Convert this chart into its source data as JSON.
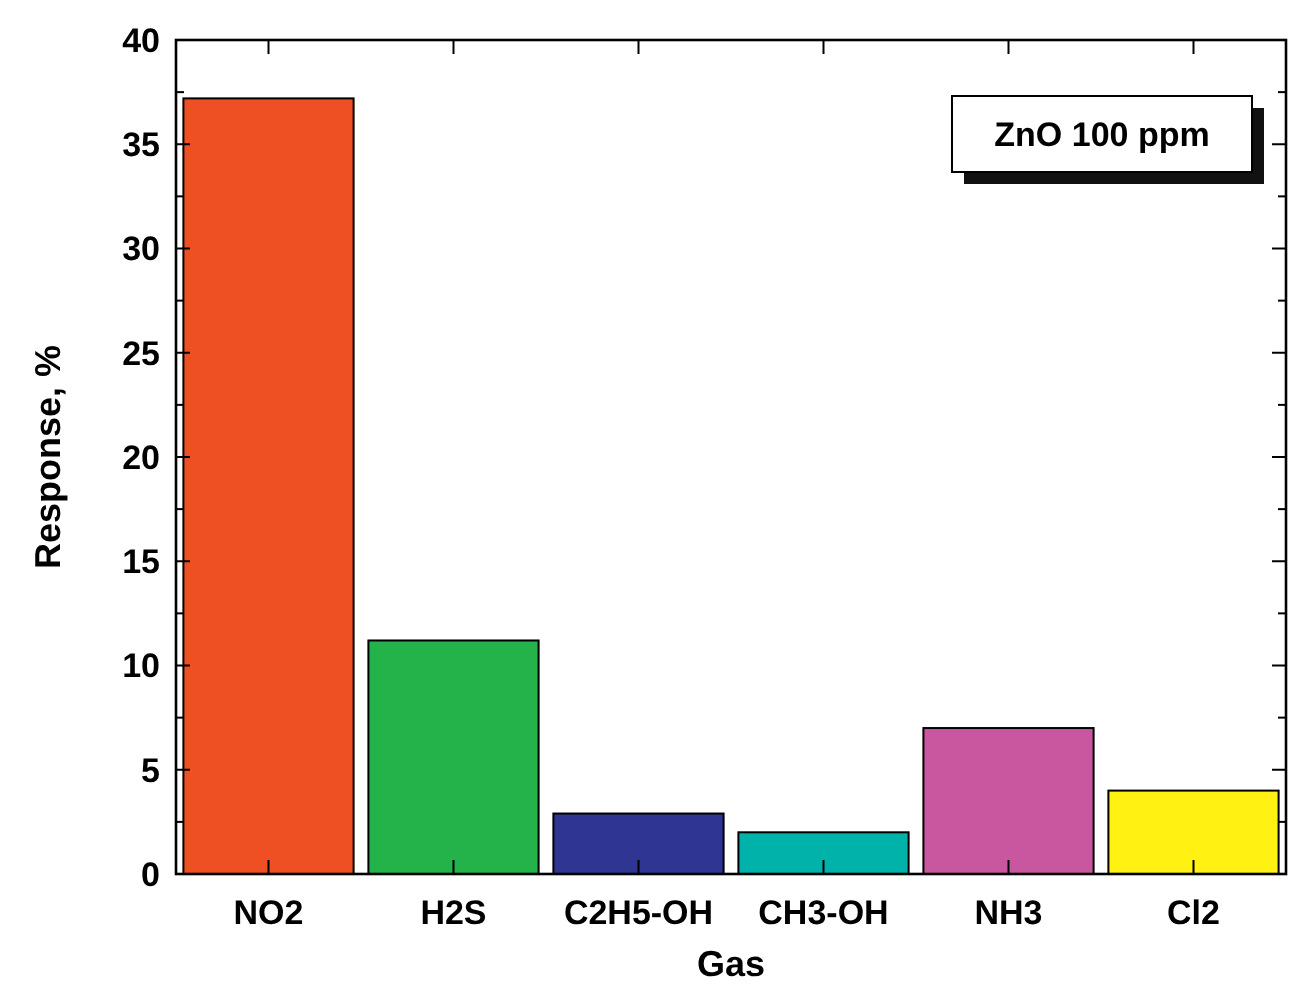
{
  "chart_data": {
    "type": "bar",
    "xlabel": "Gas",
    "ylabel": "Response, %",
    "annotations": [
      "ZnO 100 ppm"
    ],
    "categories": [
      "NO2",
      "H2S",
      "C2H5-OH",
      "CH3-OH",
      "NH3",
      "Cl2"
    ],
    "values": [
      37.2,
      11.2,
      2.9,
      2.0,
      7.0,
      4.0
    ],
    "colors": [
      "#ef5023",
      "#24b24b",
      "#2e3592",
      "#00b2a9",
      "#c9579f",
      "#fff212"
    ],
    "ylim": [
      0,
      40
    ],
    "yticks": [
      0,
      5,
      10,
      15,
      20,
      25,
      30,
      35,
      40
    ],
    "grid": false
  }
}
